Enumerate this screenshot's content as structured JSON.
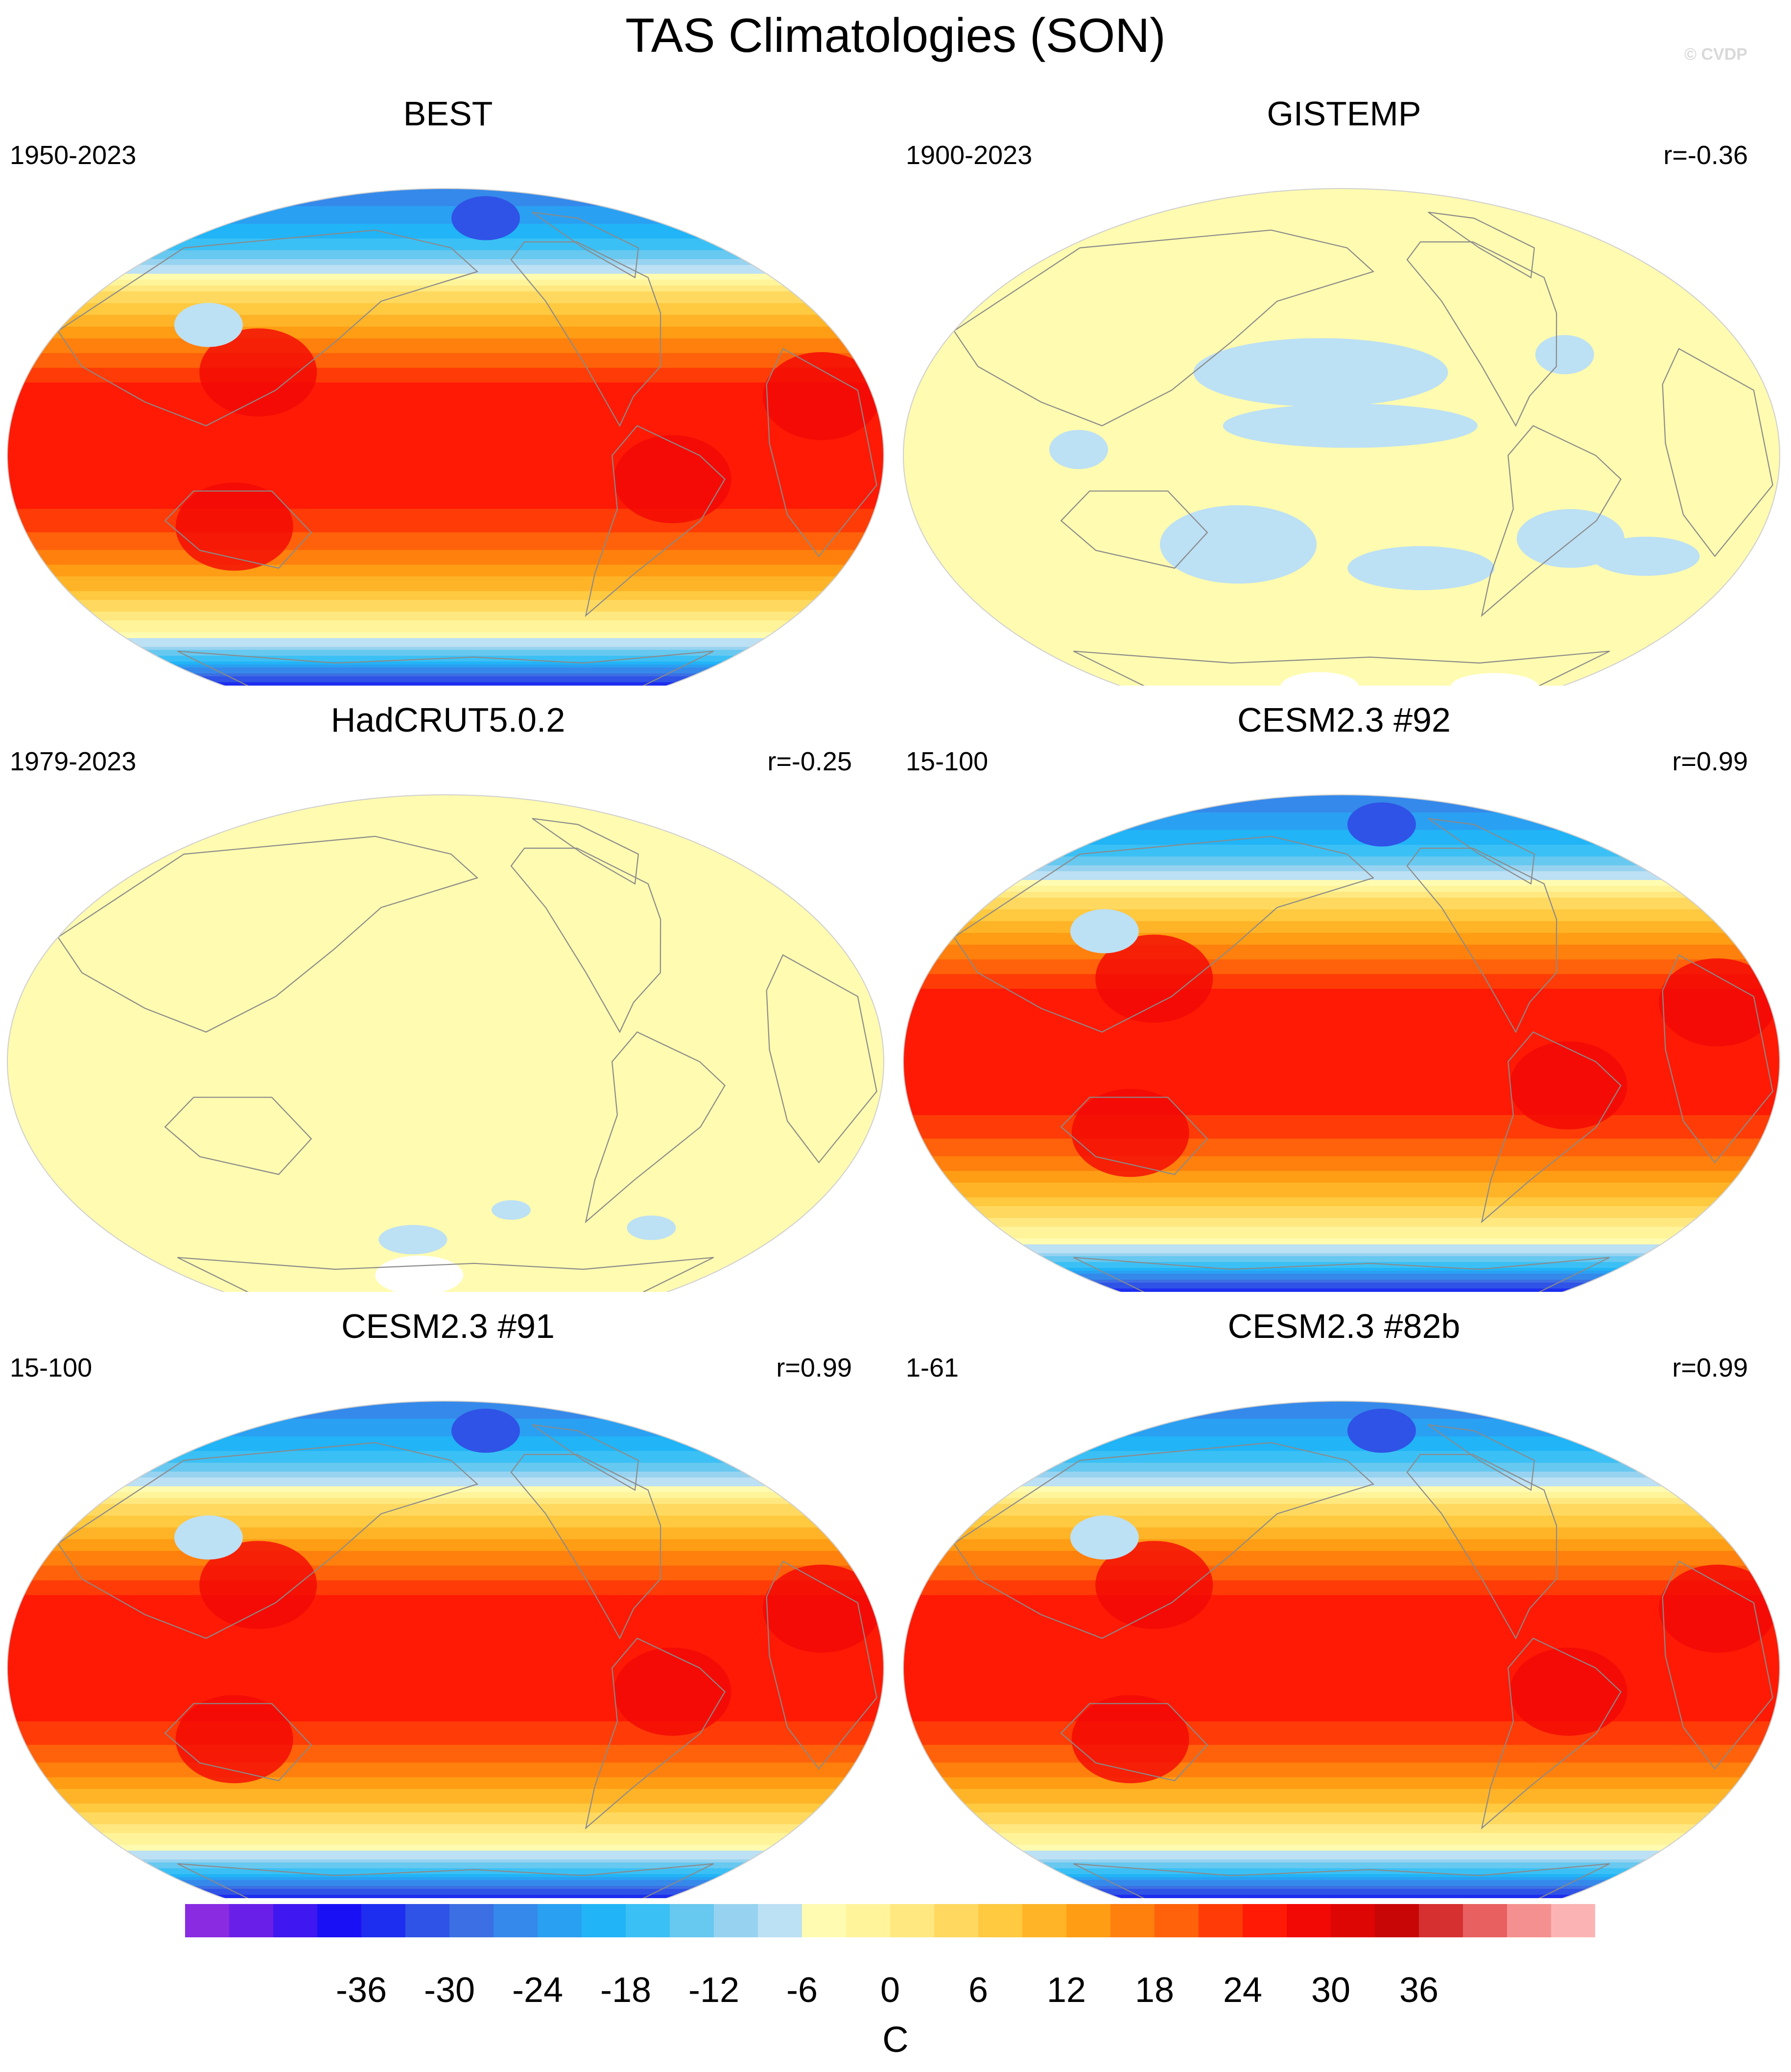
{
  "title": "TAS Climatologies (SON)",
  "watermark": "© CVDP",
  "colors": {
    "land_outline": "#8a8a8a",
    "missing": "#ffffff",
    "scale": [
      "#8a2be2",
      "#6a1fe8",
      "#3f17f0",
      "#1a10f5",
      "#1d2ef0",
      "#2f53e6",
      "#3c6fe3",
      "#3589ea",
      "#2aa0f2",
      "#21b4f7",
      "#3bc0f5",
      "#67c8f0",
      "#97d3f0",
      "#bce0f4",
      "#fffbb0",
      "#fff49a",
      "#ffe880",
      "#ffd95f",
      "#ffc940",
      "#ffb427",
      "#ff9d14",
      "#ff800d",
      "#ff620a",
      "#ff3c07",
      "#ff1a05",
      "#f20805",
      "#de0505",
      "#c80606",
      "#d63030",
      "#e86060",
      "#f59090",
      "#fcb3b3"
    ]
  },
  "colorbar": {
    "unit": "C",
    "levels_start": -45,
    "levels_step": 3,
    "tick_labels": [
      "-36",
      "-30",
      "-24",
      "-18",
      "-12",
      "-6",
      "0",
      "6",
      "12",
      "18",
      "24",
      "30",
      "36"
    ]
  },
  "chart_data": [
    {
      "type": "heatmap",
      "projection": "robinson",
      "name": "BEST",
      "period": "1950-2023",
      "stat": "",
      "field": "climatology",
      "range_c": [
        -45,
        36
      ]
    },
    {
      "type": "heatmap",
      "projection": "robinson",
      "name": "GISTEMP",
      "period": "1900-2023",
      "stat": "r=-0.36",
      "field": "near-uniform 0-3 C with scattered -3-0 C areas"
    },
    {
      "type": "heatmap",
      "projection": "robinson",
      "name": "HadCRUT5.0.2",
      "period": "1979-2023",
      "stat": "r=-0.25",
      "field": "near-uniform 0-3 C"
    },
    {
      "type": "heatmap",
      "projection": "robinson",
      "name": "CESM2.3 #92",
      "period": "15-100",
      "stat": "r=0.99",
      "field": "climatology",
      "range_c": [
        -45,
        36
      ]
    },
    {
      "type": "heatmap",
      "projection": "robinson",
      "name": "CESM2.3 #91",
      "period": "15-100",
      "stat": "r=0.99",
      "field": "climatology",
      "range_c": [
        -45,
        36
      ]
    },
    {
      "type": "heatmap",
      "projection": "robinson",
      "name": "CESM2.3 #82b",
      "period": "1-61",
      "stat": "r=0.99",
      "field": "climatology",
      "range_c": [
        -45,
        36
      ]
    }
  ]
}
